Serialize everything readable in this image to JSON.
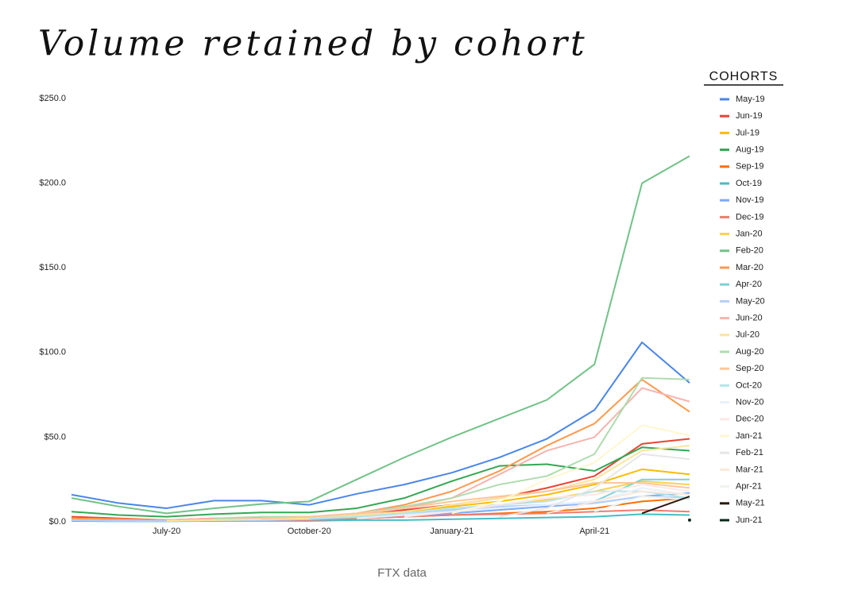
{
  "chart_data": {
    "type": "line",
    "title": "Volume retained by cohort",
    "caption": "FTX data",
    "legend_title": "COHORTS",
    "legend": "right",
    "categories": [
      null,
      null,
      "July-20",
      null,
      null,
      "October-20",
      null,
      null,
      "January-21",
      null,
      null,
      "April-21",
      null,
      null
    ],
    "ylim": [
      0,
      250
    ],
    "yticks": [
      {
        "value": 0,
        "label": "$0.0"
      },
      {
        "value": 50,
        "label": "$50.0"
      },
      {
        "value": 100,
        "label": "$100.0"
      },
      {
        "value": 150,
        "label": "$150.0"
      },
      {
        "value": 200,
        "label": "$200.0"
      },
      {
        "value": 250,
        "label": "$250.0"
      }
    ],
    "series": [
      {
        "name": "May-19",
        "color": "#4a86e8",
        "values": [
          16,
          11,
          8,
          12.5,
          12.5,
          10,
          16.5,
          22,
          29,
          38,
          49,
          66,
          106,
          82
        ]
      },
      {
        "name": "Jun-19",
        "color": "#ea4335",
        "values": [
          3,
          2,
          1,
          2,
          2,
          2,
          4,
          7,
          10,
          14,
          20,
          27,
          46,
          49
        ]
      },
      {
        "name": "Jul-19",
        "color": "#fbbc04",
        "values": [
          2,
          1.5,
          1,
          1.5,
          2,
          2,
          3,
          6,
          9,
          12,
          16,
          22,
          31,
          28
        ]
      },
      {
        "name": "Aug-19",
        "color": "#34a853",
        "values": [
          6,
          4,
          3,
          4.5,
          5.5,
          5.5,
          8,
          14,
          24,
          33,
          34,
          30,
          44,
          42
        ]
      },
      {
        "name": "Sep-19",
        "color": "#ff6d01",
        "values": [
          1,
          0.5,
          0.5,
          1,
          1,
          1,
          2,
          3,
          4,
          5,
          6,
          8,
          12,
          14
        ]
      },
      {
        "name": "Oct-19",
        "color": "#46bdc6",
        "values": [
          0.5,
          0.3,
          0.3,
          0.5,
          0.5,
          0.5,
          1,
          1,
          1.5,
          2,
          2.5,
          3,
          4.5,
          4
        ]
      },
      {
        "name": "Nov-19",
        "color": "#7baaf7",
        "values": [
          1,
          0.5,
          0.5,
          1,
          1,
          1,
          2,
          3,
          5,
          7,
          9,
          11,
          15,
          17
        ]
      },
      {
        "name": "Dec-19",
        "color": "#f07b72",
        "values": [
          1,
          0.5,
          0.5,
          1,
          1,
          1,
          2,
          3,
          4,
          4.5,
          5,
          6,
          7,
          6
        ]
      },
      {
        "name": "Jan-20",
        "color": "#fcd04f",
        "values": [
          1,
          0.7,
          0.5,
          1,
          1,
          1.5,
          3,
          5,
          8,
          10,
          13,
          18,
          24,
          22
        ]
      },
      {
        "name": "Feb-20",
        "color": "#71c287",
        "values": [
          14,
          9,
          5,
          8,
          10.5,
          12,
          25,
          38,
          50,
          61,
          72,
          93,
          200,
          216
        ]
      },
      {
        "name": "Mar-20",
        "color": "#ff994d",
        "values": [
          2,
          1.5,
          1,
          2,
          2.5,
          2.5,
          5,
          10,
          18,
          30,
          45,
          58,
          84,
          65
        ]
      },
      {
        "name": "Apr-20",
        "color": "#7ed1d7",
        "values": [
          1,
          0.5,
          0.5,
          1,
          1,
          1.5,
          2.5,
          4,
          6,
          8,
          10,
          12,
          25,
          25
        ]
      },
      {
        "name": "May-20",
        "color": "#b3cefb",
        "values": [
          1,
          0.5,
          0.5,
          1,
          1,
          1.5,
          3,
          5,
          7,
          9,
          10,
          11,
          15,
          14
        ]
      },
      {
        "name": "Jun-20",
        "color": "#f7b4ae",
        "values": [
          null,
          null,
          1,
          2,
          2,
          2.5,
          4,
          8,
          14,
          28,
          42,
          50,
          79,
          71
        ]
      },
      {
        "name": "Jul-20",
        "color": "#fde49b",
        "values": [
          null,
          null,
          0.5,
          1,
          1.5,
          2,
          4,
          6,
          10,
          14,
          18,
          25,
          42,
          45
        ]
      },
      {
        "name": "Aug-20",
        "color": "#aedcae",
        "values": [
          null,
          null,
          null,
          2,
          3,
          3,
          5,
          9,
          14,
          22,
          27,
          40,
          85,
          84
        ]
      },
      {
        "name": "Sep-20",
        "color": "#ffc599",
        "values": [
          null,
          null,
          null,
          null,
          2,
          3,
          5,
          8,
          12,
          15,
          18,
          23,
          23,
          20
        ]
      },
      {
        "name": "Oct-20",
        "color": "#b5e5e8",
        "values": [
          null,
          null,
          null,
          null,
          null,
          2,
          3,
          5,
          8,
          10,
          12,
          18,
          18,
          14
        ]
      },
      {
        "name": "Nov-20",
        "color": "#e8f0fe",
        "values": [
          null,
          null,
          null,
          null,
          null,
          null,
          2,
          4,
          6,
          8,
          10,
          12,
          20,
          16
        ]
      },
      {
        "name": "Dec-20",
        "color": "#fce8e6",
        "values": [
          null,
          null,
          null,
          null,
          null,
          null,
          null,
          3,
          6,
          10,
          14,
          16,
          22,
          18
        ]
      },
      {
        "name": "Jan-21",
        "color": "#fef7d0",
        "values": [
          null,
          null,
          null,
          null,
          null,
          null,
          null,
          null,
          5,
          12,
          25,
          35,
          57,
          51
        ]
      },
      {
        "name": "Feb-21",
        "color": "#e6e6e6",
        "values": [
          null,
          null,
          null,
          null,
          null,
          null,
          null,
          null,
          null,
          3,
          8,
          20,
          40,
          37
        ]
      },
      {
        "name": "Mar-21",
        "color": "#fde8d7",
        "values": [
          null,
          null,
          null,
          null,
          null,
          null,
          null,
          null,
          null,
          null,
          5,
          12,
          18,
          16
        ]
      },
      {
        "name": "Apr-21",
        "color": "#eef4ee",
        "values": [
          null,
          null,
          null,
          null,
          null,
          null,
          null,
          null,
          null,
          null,
          null,
          6,
          15,
          13
        ]
      },
      {
        "name": "May-21",
        "color": "#2b1a0e",
        "values": [
          null,
          null,
          null,
          null,
          null,
          null,
          null,
          null,
          null,
          null,
          null,
          null,
          5,
          15
        ]
      },
      {
        "name": "Jun-21",
        "color": "#0c2a1c",
        "values": [
          null,
          null,
          null,
          null,
          null,
          null,
          null,
          null,
          null,
          null,
          null,
          null,
          null,
          1
        ]
      }
    ]
  }
}
